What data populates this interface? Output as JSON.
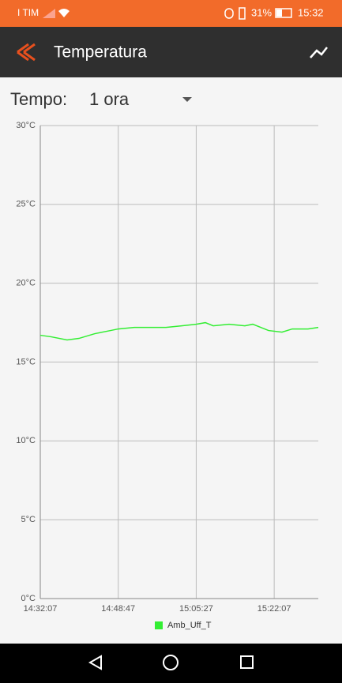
{
  "status_bar": {
    "carrier": "I TIM",
    "battery": "31%",
    "time": "15:32"
  },
  "app_bar": {
    "title": "Temperatura"
  },
  "time_filter": {
    "label": "Tempo:",
    "value": "1 ora"
  },
  "chart_data": {
    "type": "line",
    "x": [
      "14:32:07",
      "14:34:29",
      "14:37:51",
      "14:40:23",
      "14:43:46",
      "14:47:09",
      "14:48:47",
      "14:52:12",
      "14:55:35",
      "14:58:58",
      "15:02:20",
      "15:05:27",
      "15:07:24",
      "15:09:05",
      "15:12:28",
      "15:15:51",
      "15:17:32",
      "15:20:55",
      "15:23:47",
      "15:25:59",
      "15:29:21",
      "15:31:33"
    ],
    "series": [
      {
        "name": "Amb_Uff_T",
        "color": "#33ee33",
        "values": [
          16.7,
          16.6,
          16.4,
          16.5,
          16.8,
          17.0,
          17.1,
          17.2,
          17.2,
          17.2,
          17.3,
          17.4,
          17.5,
          17.3,
          17.4,
          17.3,
          17.4,
          17.0,
          16.9,
          17.1,
          17.1,
          17.2
        ]
      }
    ],
    "xlim": [
      "14:32:07",
      "15:31:33"
    ],
    "xticks": [
      "14:32:07",
      "14:48:47",
      "15:05:27",
      "15:22:07"
    ],
    "ylim": [
      0,
      30
    ],
    "yticks": [
      {
        "value": 0,
        "label": "0°C"
      },
      {
        "value": 5,
        "label": "5°C"
      },
      {
        "value": 10,
        "label": "10°C"
      },
      {
        "value": 15,
        "label": "15°C"
      },
      {
        "value": 20,
        "label": "20°C"
      },
      {
        "value": 25,
        "label": "25°C"
      },
      {
        "value": 30,
        "label": "30°C"
      }
    ],
    "grid": true
  }
}
